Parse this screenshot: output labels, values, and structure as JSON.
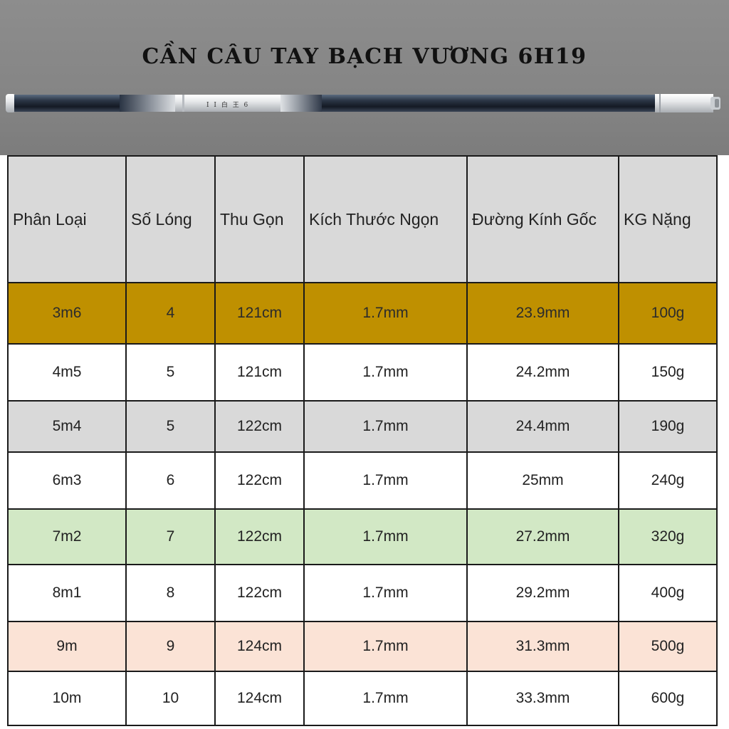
{
  "banner": {
    "title": "CẦN CÂU TAY BẠCH VƯƠNG 6H19",
    "product_image": "fishing-rod",
    "rod_marking": "I I 白 王 6"
  },
  "table": {
    "headers": [
      "Phân Loại",
      "Số Lóng",
      "Thu Gọn",
      "Kích Thước Ngọn",
      "Đường Kính Gốc",
      "KG Nặng"
    ],
    "rows": [
      {
        "color": "#bf9000",
        "cells": [
          "3m6",
          "4",
          "121cm",
          "1.7mm",
          "23.9mm",
          "100g"
        ]
      },
      {
        "color": "#ffffff",
        "cells": [
          "4m5",
          "5",
          "121cm",
          "1.7mm",
          "24.2mm",
          "150g"
        ]
      },
      {
        "color": "#d9d9d9",
        "cells": [
          "5m4",
          "5",
          "122cm",
          "1.7mm",
          "24.4mm",
          "190g"
        ]
      },
      {
        "color": "#ffffff",
        "cells": [
          "6m3",
          "6",
          "122cm",
          "1.7mm",
          "25mm",
          "240g"
        ]
      },
      {
        "color": "#d2e8c5",
        "cells": [
          "7m2",
          "7",
          "122cm",
          "1.7mm",
          "27.2mm",
          "320g"
        ]
      },
      {
        "color": "#ffffff",
        "cells": [
          "8m1",
          "8",
          "122cm",
          "1.7mm",
          "29.2mm",
          "400g"
        ]
      },
      {
        "color": "#fbe3d6",
        "cells": [
          "9m",
          "9",
          "124cm",
          "1.7mm",
          "31.3mm",
          "500g"
        ]
      },
      {
        "color": "#ffffff",
        "cells": [
          "10m",
          "10",
          "124cm",
          "1.7mm",
          "33.3mm",
          "600g"
        ]
      }
    ]
  }
}
